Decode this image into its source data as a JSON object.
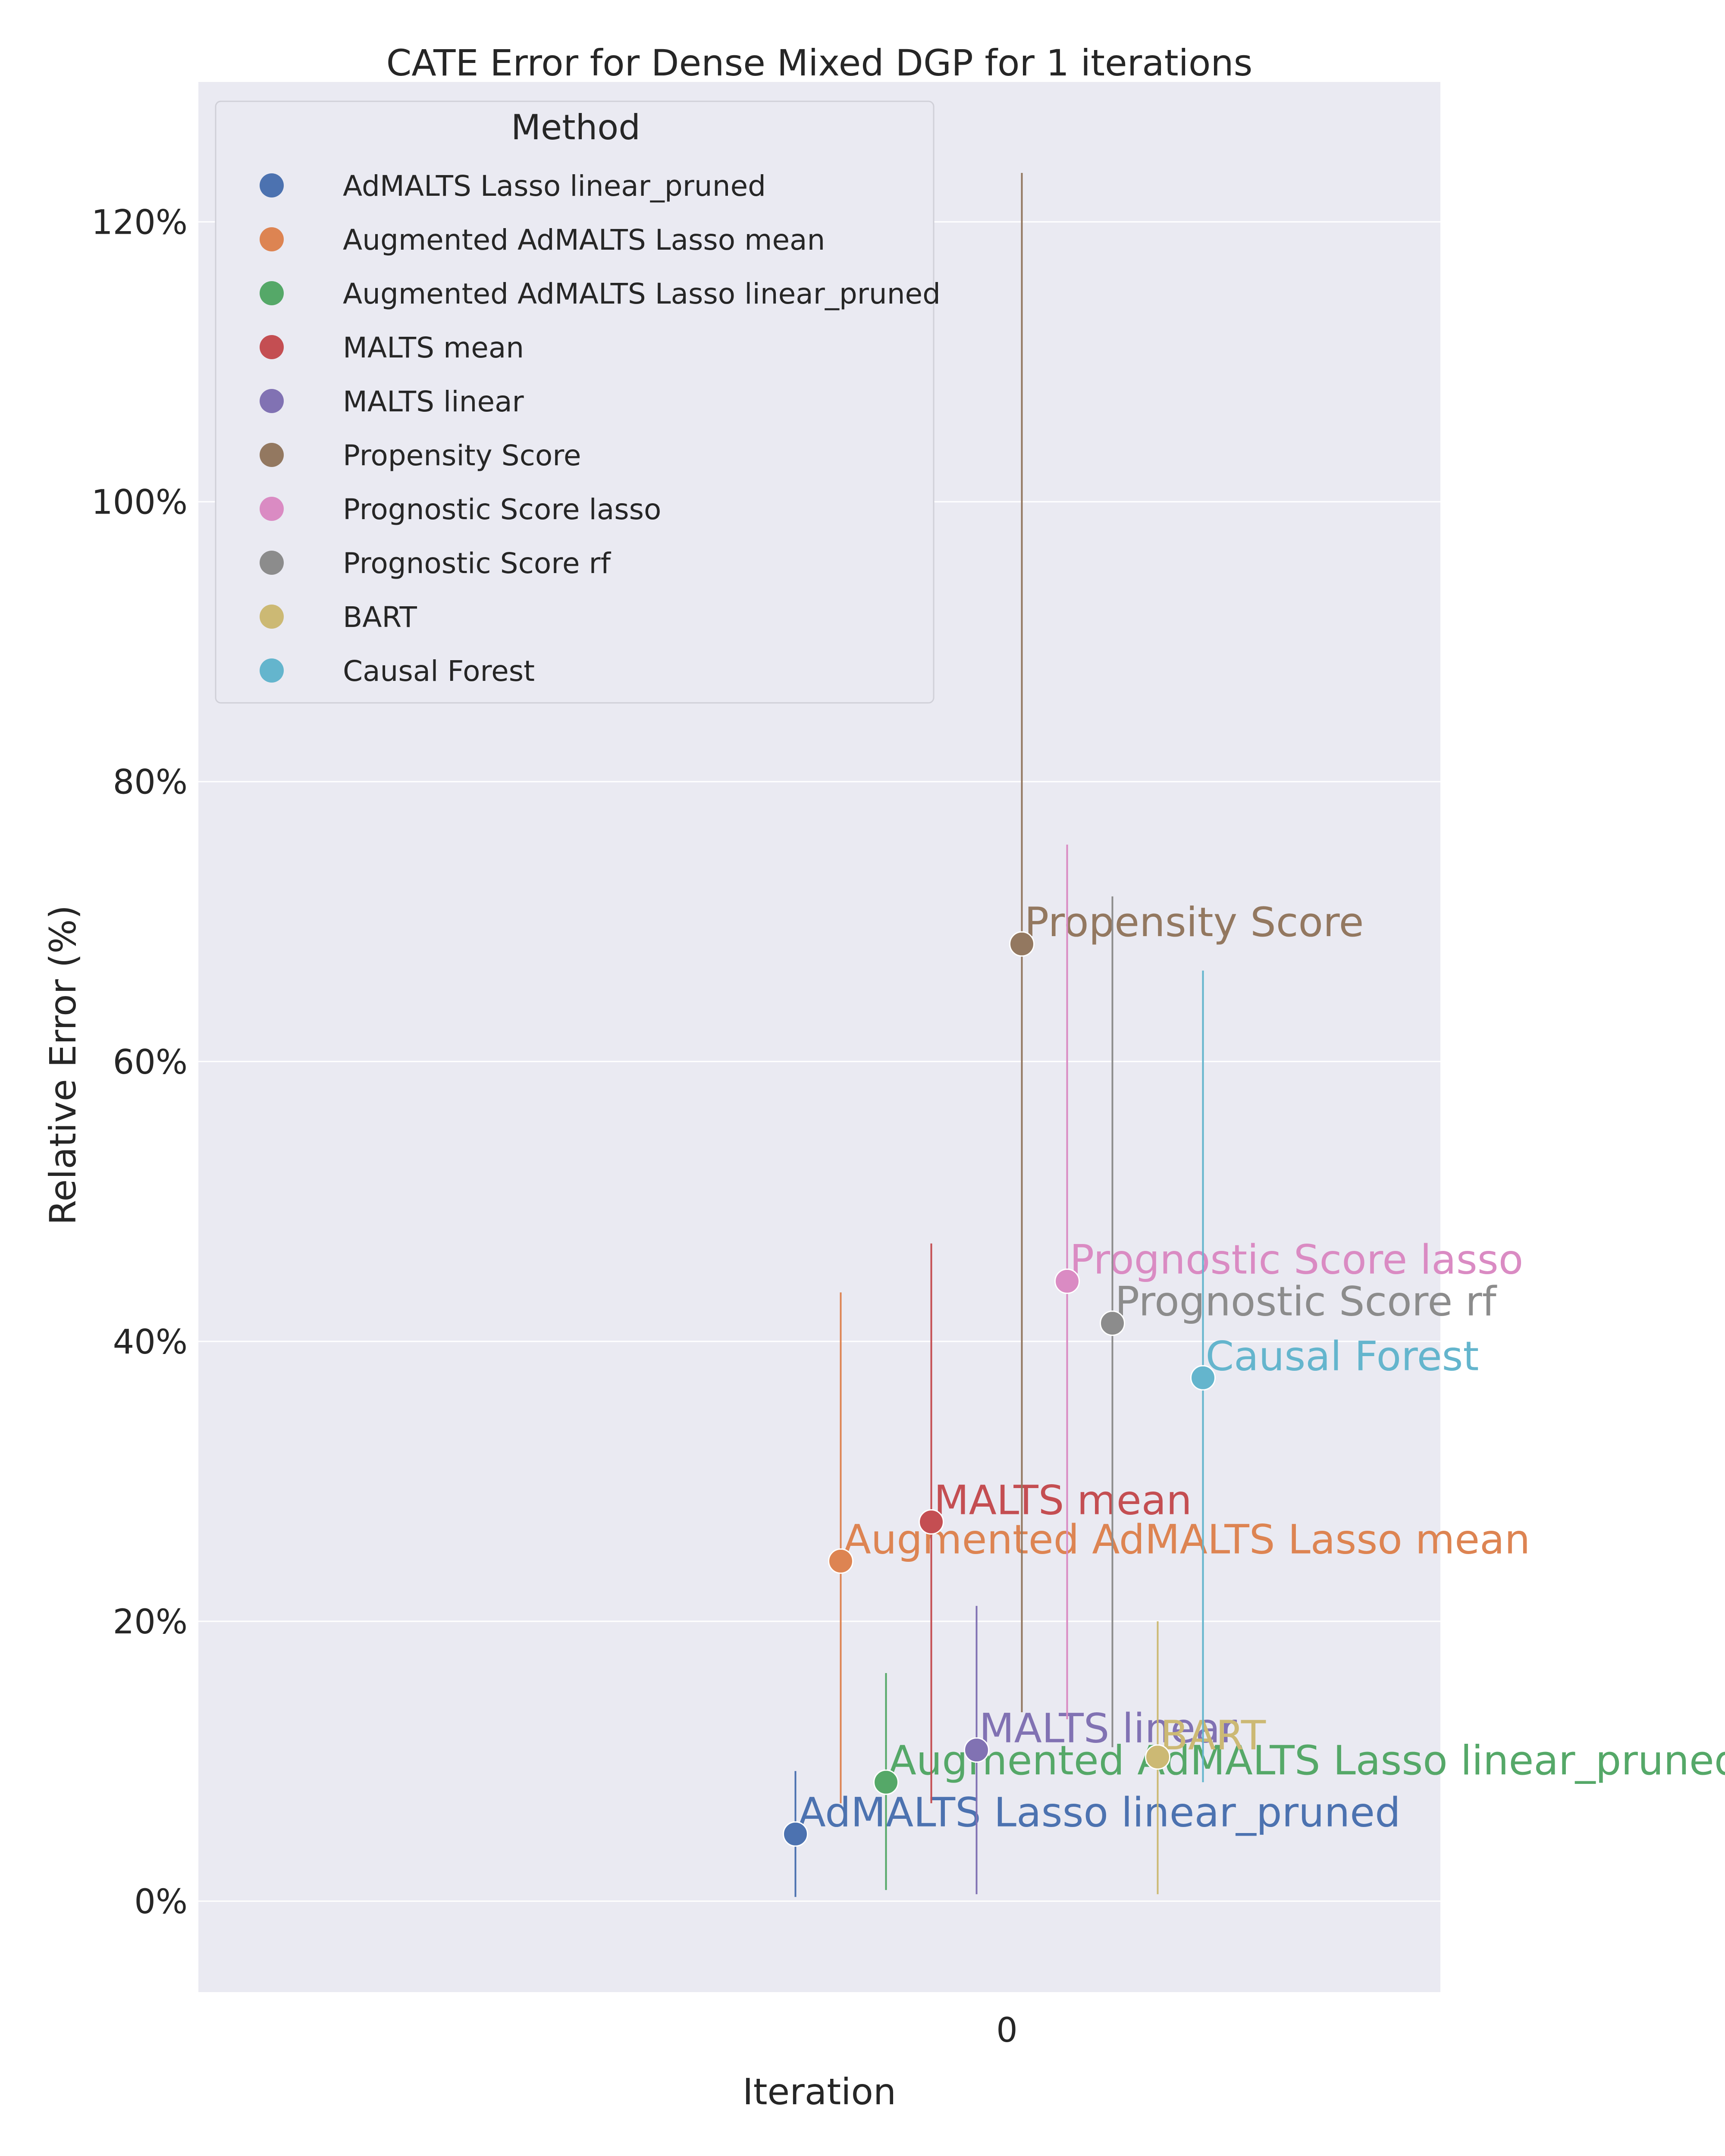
{
  "chart_data": {
    "type": "scatter",
    "title": "CATE Error for Dense Mixed DGP for 1 iterations",
    "xlabel": "Iteration",
    "ylabel": "Relative Error (%)",
    "x_ticks": [
      "0"
    ],
    "y_ticks": [
      "0%",
      "20%",
      "40%",
      "60%",
      "80%",
      "100%",
      "120%"
    ],
    "y_tick_values": [
      0,
      20,
      40,
      60,
      80,
      100,
      120
    ],
    "ylim": [
      -6.5,
      130
    ],
    "grid": true,
    "legend": {
      "title": "Method",
      "placement": "top-left"
    },
    "series": [
      {
        "name": "AdMALTS Lasso linear_pruned",
        "color": "#4c72b0",
        "value": 4.8,
        "err_low": 0.3,
        "err_high": 9.3
      },
      {
        "name": "Augmented AdMALTS Lasso mean",
        "color": "#dd8452",
        "value": 24.3,
        "err_low": 7.0,
        "err_high": 43.5
      },
      {
        "name": "Augmented AdMALTS Lasso linear_pruned",
        "color": "#55a868",
        "value": 8.5,
        "err_low": 0.8,
        "err_high": 16.3
      },
      {
        "name": "MALTS mean",
        "color": "#c44e52",
        "value": 27.1,
        "err_low": 7.0,
        "err_high": 47.0
      },
      {
        "name": "MALTS linear",
        "color": "#8172b3",
        "value": 10.8,
        "err_low": 0.5,
        "err_high": 21.1
      },
      {
        "name": "Propensity Score",
        "color": "#937860",
        "value": 68.4,
        "err_low": 13.5,
        "err_high": 123.5
      },
      {
        "name": "Prognostic Score lasso",
        "color": "#da8bc3",
        "value": 44.3,
        "err_low": 13.0,
        "err_high": 75.5
      },
      {
        "name": "Prognostic Score rf",
        "color": "#8c8c8c",
        "value": 41.3,
        "err_low": 11.0,
        "err_high": 71.8
      },
      {
        "name": "BART",
        "color": "#ccb974",
        "value": 10.3,
        "err_low": 0.5,
        "err_high": 20.0
      },
      {
        "name": "Causal Forest",
        "color": "#64b5cd",
        "value": 37.4,
        "err_low": 8.5,
        "err_high": 66.5
      }
    ]
  }
}
